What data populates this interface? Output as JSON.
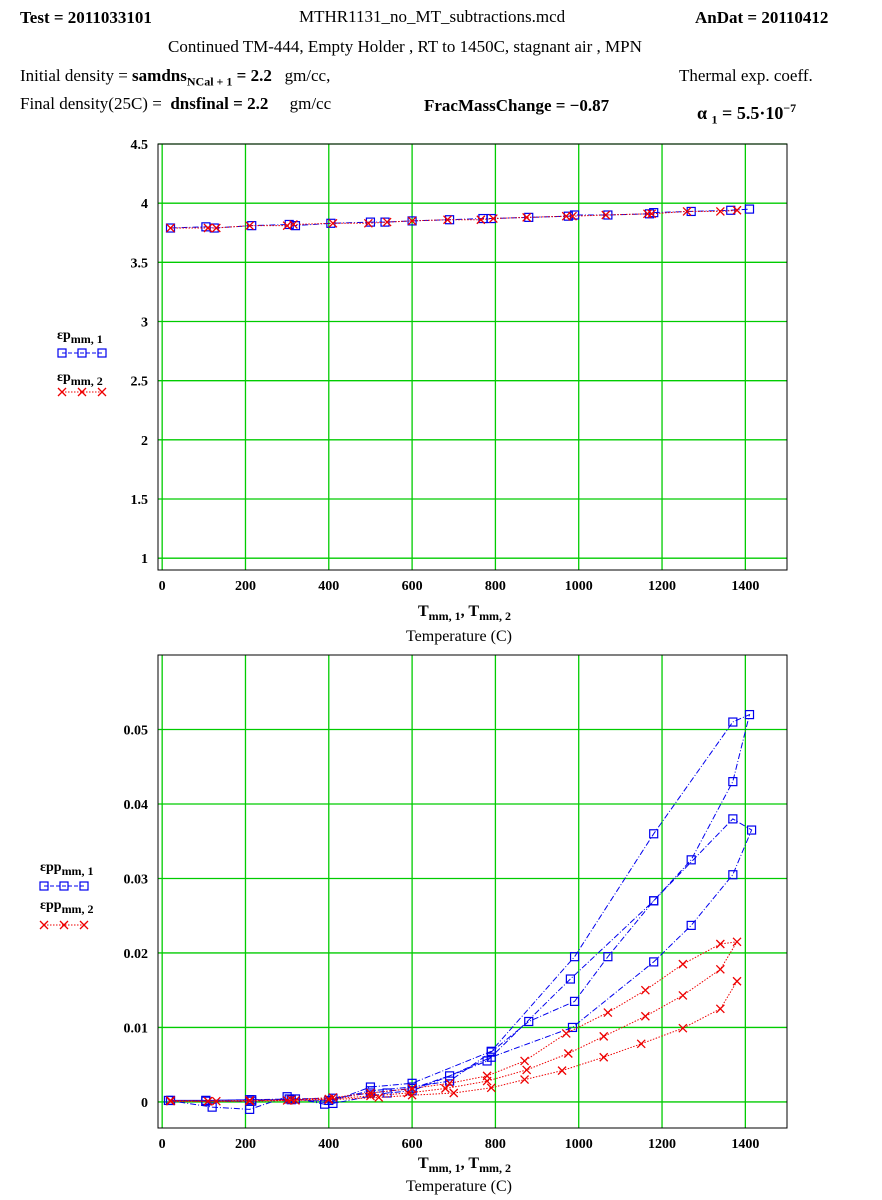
{
  "header": {
    "test_label": "Test",
    "test_value": "2011033101",
    "filename": "MTHR1131_no_MT_subtractions.mcd",
    "andat_label": "AnDat",
    "andat_value": "20110412",
    "subtitle": "Continued  TM-444, Empty Holder , RT to 1450C, stagnant air , MPN"
  },
  "params": {
    "initial_density_label": "Initial density =",
    "initial_density_var": "samdns",
    "initial_density_sub": "NCal + 1",
    "initial_density_value": "2.2",
    "initial_density_unit": "gm/cc,",
    "final_density_label": "Final density(25C) =",
    "final_density_var": "dnsfinal",
    "final_density_value": "2.2",
    "final_density_unit": "gm/cc",
    "frac_mass_label": "FracMassChange",
    "frac_mass_value": "−0.87",
    "thermal_label": "Thermal exp. coeff.",
    "alpha_sym": "α",
    "alpha_sub": "1",
    "alpha_mantissa": "5.5·10",
    "alpha_exp": "−7"
  },
  "colors": {
    "grid": "#00cc00",
    "series1": "#0000ee",
    "series2": "#ee0000"
  },
  "chart_data": [
    {
      "type": "line",
      "xlabel_var": "T",
      "xlabel_sub": "mm, 1",
      "xlabel_var2": "T",
      "xlabel_sub2": "mm, 2",
      "xlabel_units": "Temperature (C)",
      "xlim": [
        -10,
        1500
      ],
      "ylim": [
        0.9,
        4.5
      ],
      "xticks": [
        0,
        200,
        400,
        600,
        800,
        1000,
        1200,
        1400
      ],
      "yticks": [
        1,
        1.5,
        2,
        2.5,
        3,
        3.5,
        4,
        4.5
      ],
      "grid": true,
      "legend_position": "left",
      "series": [
        {
          "name": "εp",
          "sub": "mm, 1",
          "marker": "square",
          "x": [
            20,
            105,
            125,
            215,
            305,
            320,
            405,
            500,
            535,
            600,
            690,
            770,
            790,
            880,
            975,
            990,
            1070,
            1170,
            1180,
            1270,
            1365,
            1410
          ],
          "y": [
            3.79,
            3.8,
            3.79,
            3.81,
            3.82,
            3.81,
            3.83,
            3.84,
            3.84,
            3.85,
            3.86,
            3.87,
            3.87,
            3.88,
            3.89,
            3.9,
            3.9,
            3.91,
            3.92,
            3.93,
            3.94,
            3.95
          ]
        },
        {
          "name": "εp",
          "sub": "mm, 2",
          "marker": "x",
          "x": [
            20,
            110,
            130,
            210,
            300,
            315,
            410,
            495,
            540,
            600,
            685,
            765,
            795,
            875,
            970,
            985,
            1065,
            1165,
            1175,
            1260,
            1340,
            1380
          ],
          "y": [
            3.79,
            3.79,
            3.79,
            3.81,
            3.81,
            3.82,
            3.83,
            3.83,
            3.84,
            3.85,
            3.86,
            3.86,
            3.87,
            3.88,
            3.89,
            3.89,
            3.9,
            3.91,
            3.91,
            3.93,
            3.93,
            3.94
          ]
        }
      ]
    },
    {
      "type": "line",
      "xlabel_var": "T",
      "xlabel_sub": "mm, 1",
      "xlabel_var2": "T",
      "xlabel_sub2": "mm, 2",
      "xlabel_units": "Temperature (C)",
      "xlim": [
        -10,
        1500
      ],
      "ylim": [
        -0.0035,
        0.06
      ],
      "xticks": [
        0,
        200,
        400,
        600,
        800,
        1000,
        1200,
        1400
      ],
      "yticks": [
        0,
        0.01,
        0.02,
        0.03,
        0.04,
        0.05
      ],
      "grid": true,
      "legend_position": "left",
      "series": [
        {
          "name": "εpp",
          "sub": "mm, 1",
          "marker": "square",
          "x": [
            15,
            120,
            210,
            300,
            390,
            500,
            600,
            790,
            990,
            1180,
            1370,
            1410,
            1370,
            1270,
            1180,
            1070,
            990,
            880,
            790,
            690,
            600,
            500,
            400,
            310,
            210,
            105,
            20,
            105,
            215,
            320,
            410,
            540,
            600,
            780,
            980,
            1180,
            1370,
            1415,
            1370,
            1270,
            1180,
            985,
            790,
            690,
            600,
            500,
            410,
            305,
            215,
            105,
            20
          ],
          "y": [
            0.0002,
            -0.0007,
            -0.001,
            0.0007,
            -0.0003,
            0.002,
            0.0025,
            0.0068,
            0.0195,
            0.036,
            0.051,
            0.052,
            0.043,
            0.0325,
            0.027,
            0.0195,
            0.0135,
            0.0108,
            0.0067,
            0.0028,
            0.002,
            0.0015,
            0.0002,
            0.0003,
            0.0003,
            0.0002,
            0.0002,
            0.0002,
            0.0003,
            0.0004,
            -0.0002,
            0.0012,
            0.0015,
            0.0055,
            0.0165,
            0.027,
            0.038,
            0.0365,
            0.0305,
            0.0237,
            0.0188,
            0.01,
            0.006,
            0.0035,
            0.0018,
            0.0012,
            0.0005,
            0.0004,
            0.0001,
            0.0001,
            0.0002
          ]
        },
        {
          "name": "εpp",
          "sub": "mm, 2",
          "marker": "x",
          "x": [
            20,
            130,
            210,
            310,
            410,
            500,
            600,
            690,
            780,
            870,
            970,
            1070,
            1160,
            1250,
            1340,
            1380,
            1340,
            1250,
            1160,
            1060,
            975,
            875,
            780,
            680,
            590,
            500,
            400,
            300,
            210,
            110,
            20,
            110,
            210,
            320,
            400,
            520,
            600,
            700,
            790,
            870,
            960,
            1060,
            1150,
            1250,
            1340,
            1380
          ],
          "y": [
            0.0002,
            0.0001,
            0.0002,
            0.0003,
            0.0006,
            0.0012,
            0.0018,
            0.0025,
            0.0035,
            0.0055,
            0.0092,
            0.012,
            0.015,
            0.0185,
            0.0212,
            0.0215,
            0.0178,
            0.0143,
            0.0115,
            0.0088,
            0.0065,
            0.0043,
            0.0028,
            0.0018,
            0.0012,
            0.0008,
            0.0004,
            0.0002,
            0.0002,
            0.0001,
            0.0001,
            0.0001,
            0.0001,
            0.0002,
            0.0003,
            0.0006,
            0.0009,
            0.0012,
            0.0019,
            0.003,
            0.0042,
            0.006,
            0.0078,
            0.0099,
            0.0125,
            0.0162
          ]
        }
      ]
    }
  ]
}
